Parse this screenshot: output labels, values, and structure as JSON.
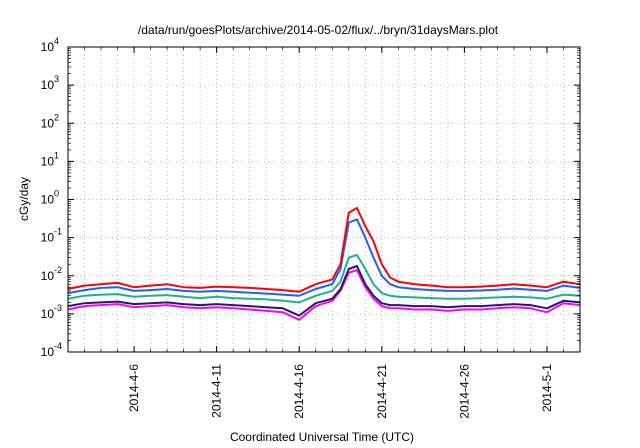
{
  "chart_data": {
    "type": "line",
    "title": "/data/run/goesPlots/archive/2014-05-02/flux/../bryn/31daysMars.plot",
    "xlabel": "Coordinated Universal Time (UTC)",
    "ylabel": "cGy/day",
    "y_scale": "log",
    "ylim": [
      0.0001,
      10000
    ],
    "xlim": [
      "2014-04-02",
      "2014-05-03"
    ],
    "grid": true,
    "x_ticks": [
      "2014-4-6",
      "2014-4-11",
      "2014-4-16",
      "2014-4-21",
      "2014-4-26",
      "2014-5-1"
    ],
    "y_ticks": [
      {
        "base": "10",
        "exp": "-4"
      },
      {
        "base": "10",
        "exp": "-3"
      },
      {
        "base": "10",
        "exp": "-2"
      },
      {
        "base": "10",
        "exp": "-1"
      },
      {
        "base": "10",
        "exp": "0"
      },
      {
        "base": "10",
        "exp": "1"
      },
      {
        "base": "10",
        "exp": "2"
      },
      {
        "base": "10",
        "exp": "3"
      },
      {
        "base": "10",
        "exp": "4"
      }
    ],
    "series": [
      {
        "color": "#ff0000",
        "points": [
          [
            "2014-04-02",
            0.0045
          ],
          [
            "2014-04-03",
            0.0055
          ],
          [
            "2014-04-04",
            0.006
          ],
          [
            "2014-04-05",
            0.0065
          ],
          [
            "2014-04-06",
            0.005
          ],
          [
            "2014-04-07",
            0.0055
          ],
          [
            "2014-04-08",
            0.006
          ],
          [
            "2014-04-09",
            0.005
          ],
          [
            "2014-04-10",
            0.0048
          ],
          [
            "2014-04-11",
            0.0052
          ],
          [
            "2014-04-12",
            0.005
          ],
          [
            "2014-04-13",
            0.0048
          ],
          [
            "2014-04-14",
            0.0045
          ],
          [
            "2014-04-15",
            0.0042
          ],
          [
            "2014-04-16",
            0.0038
          ],
          [
            "2014-04-17",
            0.006
          ],
          [
            "2014-04-18",
            0.008
          ],
          [
            "2014-04-18T12:00",
            0.02
          ],
          [
            "2014-04-19",
            0.45
          ],
          [
            "2014-04-19T12:00",
            0.6
          ],
          [
            "2014-04-20",
            0.2
          ],
          [
            "2014-04-20T12:00",
            0.08
          ],
          [
            "2014-04-21",
            0.02
          ],
          [
            "2014-04-21T12:00",
            0.009
          ],
          [
            "2014-04-22",
            0.007
          ],
          [
            "2014-04-23",
            0.006
          ],
          [
            "2014-04-24",
            0.0055
          ],
          [
            "2014-04-25",
            0.005
          ],
          [
            "2014-04-26",
            0.005
          ],
          [
            "2014-04-27",
            0.0052
          ],
          [
            "2014-04-28",
            0.0055
          ],
          [
            "2014-04-29",
            0.006
          ],
          [
            "2014-04-30",
            0.0055
          ],
          [
            "2014-05-01",
            0.005
          ],
          [
            "2014-05-02",
            0.007
          ],
          [
            "2014-05-03",
            0.006
          ]
        ]
      },
      {
        "color": "#1f5fff",
        "points": [
          [
            "2014-04-02",
            0.0035
          ],
          [
            "2014-04-03",
            0.0042
          ],
          [
            "2014-04-04",
            0.0048
          ],
          [
            "2014-04-05",
            0.005
          ],
          [
            "2014-04-06",
            0.004
          ],
          [
            "2014-04-07",
            0.0042
          ],
          [
            "2014-04-08",
            0.0045
          ],
          [
            "2014-04-09",
            0.004
          ],
          [
            "2014-04-10",
            0.0038
          ],
          [
            "2014-04-11",
            0.004
          ],
          [
            "2014-04-12",
            0.0038
          ],
          [
            "2014-04-13",
            0.0036
          ],
          [
            "2014-04-14",
            0.0034
          ],
          [
            "2014-04-15",
            0.0032
          ],
          [
            "2014-04-16",
            0.003
          ],
          [
            "2014-04-17",
            0.0045
          ],
          [
            "2014-04-18",
            0.006
          ],
          [
            "2014-04-18T12:00",
            0.015
          ],
          [
            "2014-04-19",
            0.25
          ],
          [
            "2014-04-19T12:00",
            0.3
          ],
          [
            "2014-04-20",
            0.1
          ],
          [
            "2014-04-20T12:00",
            0.03
          ],
          [
            "2014-04-21",
            0.01
          ],
          [
            "2014-04-21T12:00",
            0.006
          ],
          [
            "2014-04-22",
            0.005
          ],
          [
            "2014-04-23",
            0.0045
          ],
          [
            "2014-04-24",
            0.0042
          ],
          [
            "2014-04-25",
            0.004
          ],
          [
            "2014-04-26",
            0.004
          ],
          [
            "2014-04-27",
            0.0041
          ],
          [
            "2014-04-28",
            0.0043
          ],
          [
            "2014-04-29",
            0.0046
          ],
          [
            "2014-04-30",
            0.0043
          ],
          [
            "2014-05-01",
            0.004
          ],
          [
            "2014-05-02",
            0.0055
          ],
          [
            "2014-05-03",
            0.0048
          ]
        ]
      },
      {
        "color": "#20b090",
        "points": [
          [
            "2014-04-02",
            0.0025
          ],
          [
            "2014-04-03",
            0.003
          ],
          [
            "2014-04-04",
            0.0032
          ],
          [
            "2014-04-05",
            0.0033
          ],
          [
            "2014-04-06",
            0.0028
          ],
          [
            "2014-04-07",
            0.003
          ],
          [
            "2014-04-08",
            0.0031
          ],
          [
            "2014-04-09",
            0.0028
          ],
          [
            "2014-04-10",
            0.0026
          ],
          [
            "2014-04-11",
            0.0028
          ],
          [
            "2014-04-12",
            0.0026
          ],
          [
            "2014-04-13",
            0.0025
          ],
          [
            "2014-04-14",
            0.0024
          ],
          [
            "2014-04-15",
            0.0022
          ],
          [
            "2014-04-16",
            0.002
          ],
          [
            "2014-04-17",
            0.003
          ],
          [
            "2014-04-18",
            0.004
          ],
          [
            "2014-04-18T12:00",
            0.007
          ],
          [
            "2014-04-19",
            0.03
          ],
          [
            "2014-04-19T12:00",
            0.035
          ],
          [
            "2014-04-20",
            0.015
          ],
          [
            "2014-04-20T12:00",
            0.006
          ],
          [
            "2014-04-21",
            0.0035
          ],
          [
            "2014-04-21T12:00",
            0.003
          ],
          [
            "2014-04-22",
            0.0028
          ],
          [
            "2014-04-23",
            0.0027
          ],
          [
            "2014-04-24",
            0.0026
          ],
          [
            "2014-04-25",
            0.0025
          ],
          [
            "2014-04-26",
            0.0025
          ],
          [
            "2014-04-27",
            0.0026
          ],
          [
            "2014-04-28",
            0.0027
          ],
          [
            "2014-04-29",
            0.0028
          ],
          [
            "2014-04-30",
            0.0027
          ],
          [
            "2014-05-01",
            0.0025
          ],
          [
            "2014-05-02",
            0.0032
          ],
          [
            "2014-05-03",
            0.003
          ]
        ]
      },
      {
        "color": "#202060",
        "points": [
          [
            "2014-04-02",
            0.0016
          ],
          [
            "2014-04-03",
            0.0019
          ],
          [
            "2014-04-04",
            0.002
          ],
          [
            "2014-04-05",
            0.0021
          ],
          [
            "2014-04-06",
            0.0018
          ],
          [
            "2014-04-07",
            0.0019
          ],
          [
            "2014-04-08",
            0.002
          ],
          [
            "2014-04-09",
            0.0018
          ],
          [
            "2014-04-10",
            0.0017
          ],
          [
            "2014-04-11",
            0.0018
          ],
          [
            "2014-04-12",
            0.0017
          ],
          [
            "2014-04-13",
            0.0016
          ],
          [
            "2014-04-14",
            0.0015
          ],
          [
            "2014-04-15",
            0.0014
          ],
          [
            "2014-04-16",
            0.0009
          ],
          [
            "2014-04-17",
            0.0019
          ],
          [
            "2014-04-18",
            0.0025
          ],
          [
            "2014-04-18T12:00",
            0.0045
          ],
          [
            "2014-04-19",
            0.015
          ],
          [
            "2014-04-19T12:00",
            0.018
          ],
          [
            "2014-04-20",
            0.006
          ],
          [
            "2014-04-20T12:00",
            0.003
          ],
          [
            "2014-04-21",
            0.0019
          ],
          [
            "2014-04-21T12:00",
            0.0017
          ],
          [
            "2014-04-22",
            0.0017
          ],
          [
            "2014-04-23",
            0.0016
          ],
          [
            "2014-04-24",
            0.0016
          ],
          [
            "2014-04-25",
            0.0015
          ],
          [
            "2014-04-26",
            0.0016
          ],
          [
            "2014-04-27",
            0.0016
          ],
          [
            "2014-04-28",
            0.0017
          ],
          [
            "2014-04-29",
            0.0018
          ],
          [
            "2014-04-30",
            0.0017
          ],
          [
            "2014-05-01",
            0.0014
          ],
          [
            "2014-05-02",
            0.0022
          ],
          [
            "2014-05-03",
            0.002
          ]
        ]
      },
      {
        "color": "#ff00ff",
        "points": [
          [
            "2014-04-02",
            0.0013
          ],
          [
            "2014-04-03",
            0.0016
          ],
          [
            "2014-04-04",
            0.0017
          ],
          [
            "2014-04-05",
            0.0018
          ],
          [
            "2014-04-06",
            0.0015
          ],
          [
            "2014-04-07",
            0.0016
          ],
          [
            "2014-04-08",
            0.0017
          ],
          [
            "2014-04-09",
            0.0015
          ],
          [
            "2014-04-10",
            0.0014
          ],
          [
            "2014-04-11",
            0.0015
          ],
          [
            "2014-04-12",
            0.0014
          ],
          [
            "2014-04-13",
            0.0013
          ],
          [
            "2014-04-14",
            0.0012
          ],
          [
            "2014-04-15",
            0.0011
          ],
          [
            "2014-04-16",
            0.0007
          ],
          [
            "2014-04-17",
            0.0016
          ],
          [
            "2014-04-18",
            0.0022
          ],
          [
            "2014-04-18T12:00",
            0.004
          ],
          [
            "2014-04-19",
            0.012
          ],
          [
            "2014-04-19T12:00",
            0.014
          ],
          [
            "2014-04-20",
            0.005
          ],
          [
            "2014-04-20T12:00",
            0.0025
          ],
          [
            "2014-04-21",
            0.0016
          ],
          [
            "2014-04-21T12:00",
            0.0014
          ],
          [
            "2014-04-22",
            0.0014
          ],
          [
            "2014-04-23",
            0.0013
          ],
          [
            "2014-04-24",
            0.0013
          ],
          [
            "2014-04-25",
            0.0012
          ],
          [
            "2014-04-26",
            0.0013
          ],
          [
            "2014-04-27",
            0.0013
          ],
          [
            "2014-04-28",
            0.0014
          ],
          [
            "2014-04-29",
            0.0015
          ],
          [
            "2014-04-30",
            0.0014
          ],
          [
            "2014-05-01",
            0.0011
          ],
          [
            "2014-05-02",
            0.0019
          ],
          [
            "2014-05-03",
            0.0017
          ]
        ]
      }
    ]
  }
}
